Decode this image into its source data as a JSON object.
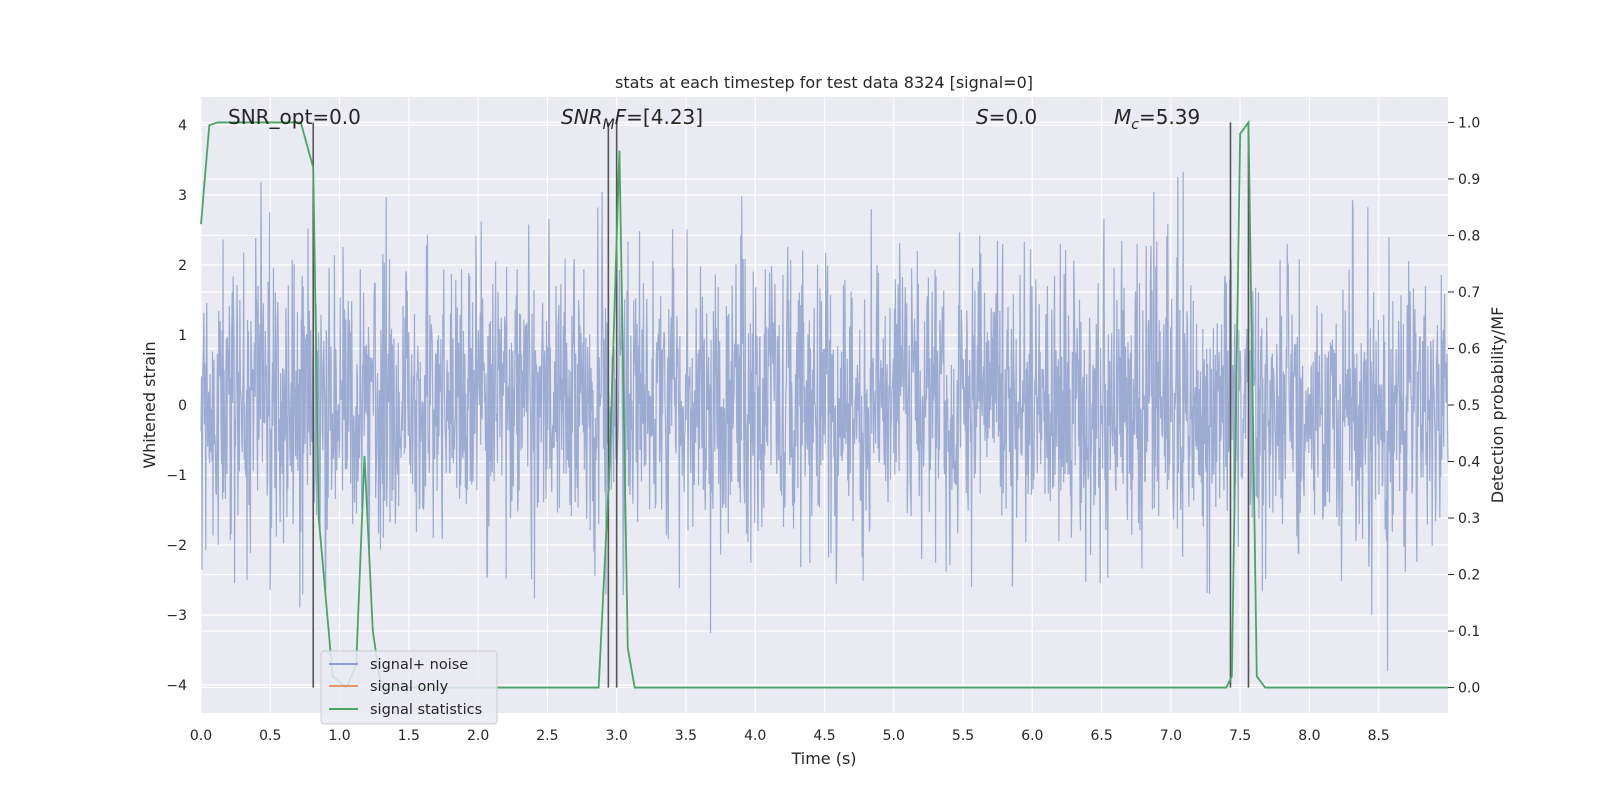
{
  "chart_data": {
    "type": "line",
    "title": "stats at each timestep for test data 8324 [signal=0]",
    "xlabel": "Time (s)",
    "ylabel": "Whitened strain",
    "y2label": "Detection probability/MF",
    "xlim": [
      0,
      9.0
    ],
    "ylim": [
      -4.4,
      4.4
    ],
    "y2lim": [
      -0.045,
      1.045
    ],
    "xticks": [
      "0.0",
      "0.5",
      "1.0",
      "1.5",
      "2.0",
      "2.5",
      "3.0",
      "3.5",
      "4.0",
      "4.5",
      "5.0",
      "5.5",
      "6.0",
      "6.5",
      "7.0",
      "7.5",
      "8.0",
      "8.5"
    ],
    "yticks": [
      "−4",
      "−3",
      "−2",
      "−1",
      "0",
      "1",
      "2",
      "3",
      "4"
    ],
    "y2ticks": [
      "0.0",
      "0.1",
      "0.2",
      "0.3",
      "0.4",
      "0.5",
      "0.6",
      "0.7",
      "0.8",
      "0.9",
      "1.0"
    ],
    "grid": true,
    "legend": {
      "position": "lower-left",
      "entries": [
        {
          "label": "signal+ noise",
          "color": "#8da0cb"
        },
        {
          "label": "signal only",
          "color": "#e5956b"
        },
        {
          "label": "signal statistics",
          "color": "#4aa564"
        }
      ]
    },
    "annotations": {
      "snr_opt": "SNR_opt=0.0",
      "snr_mf_base": "SNR",
      "snr_mf_sub": "M",
      "snr_mf_rest": "F",
      "snr_mf_value": "=[4.23]",
      "s_symbol": "S",
      "s_value": "=0.0",
      "mc_base": "M",
      "mc_sub": "c",
      "mc_value": "=5.39"
    },
    "series": [
      {
        "name": "signal+ noise",
        "color": "#8da0cb",
        "kind": "noise",
        "description_values": "dense whitened strain noise between about -3.8 and 3.8 across 0-9 s"
      },
      {
        "name": "signal only",
        "color": "#e5956b",
        "values": []
      },
      {
        "name": "signal statistics",
        "color": "#4aa564",
        "axis": "right",
        "x": [
          0.0,
          0.06,
          0.12,
          0.2,
          0.4,
          0.6,
          0.72,
          0.81,
          0.85,
          0.95,
          1.05,
          1.12,
          1.18,
          1.24,
          1.3,
          1.4,
          2.0,
          2.5,
          2.87,
          2.95,
          3.02,
          3.08,
          3.13,
          3.5,
          4.0,
          5.0,
          6.0,
          7.0,
          7.4,
          7.44,
          7.5,
          7.56,
          7.62,
          7.68,
          8.0,
          9.0
        ],
        "values": [
          0.82,
          0.995,
          1.0,
          1.0,
          1.0,
          1.0,
          1.0,
          0.92,
          0.3,
          0.02,
          0.0,
          0.04,
          0.41,
          0.1,
          0.0,
          0.0,
          0.0,
          0.0,
          0.0,
          0.4,
          0.95,
          0.07,
          0.0,
          0.0,
          0.0,
          0.0,
          0.0,
          0.0,
          0.0,
          0.02,
          0.98,
          1.0,
          0.02,
          0.0,
          0.0,
          0.0
        ]
      }
    ],
    "vertical_lines": [
      0.81,
      2.94,
      3.0,
      7.43,
      7.56
    ]
  }
}
